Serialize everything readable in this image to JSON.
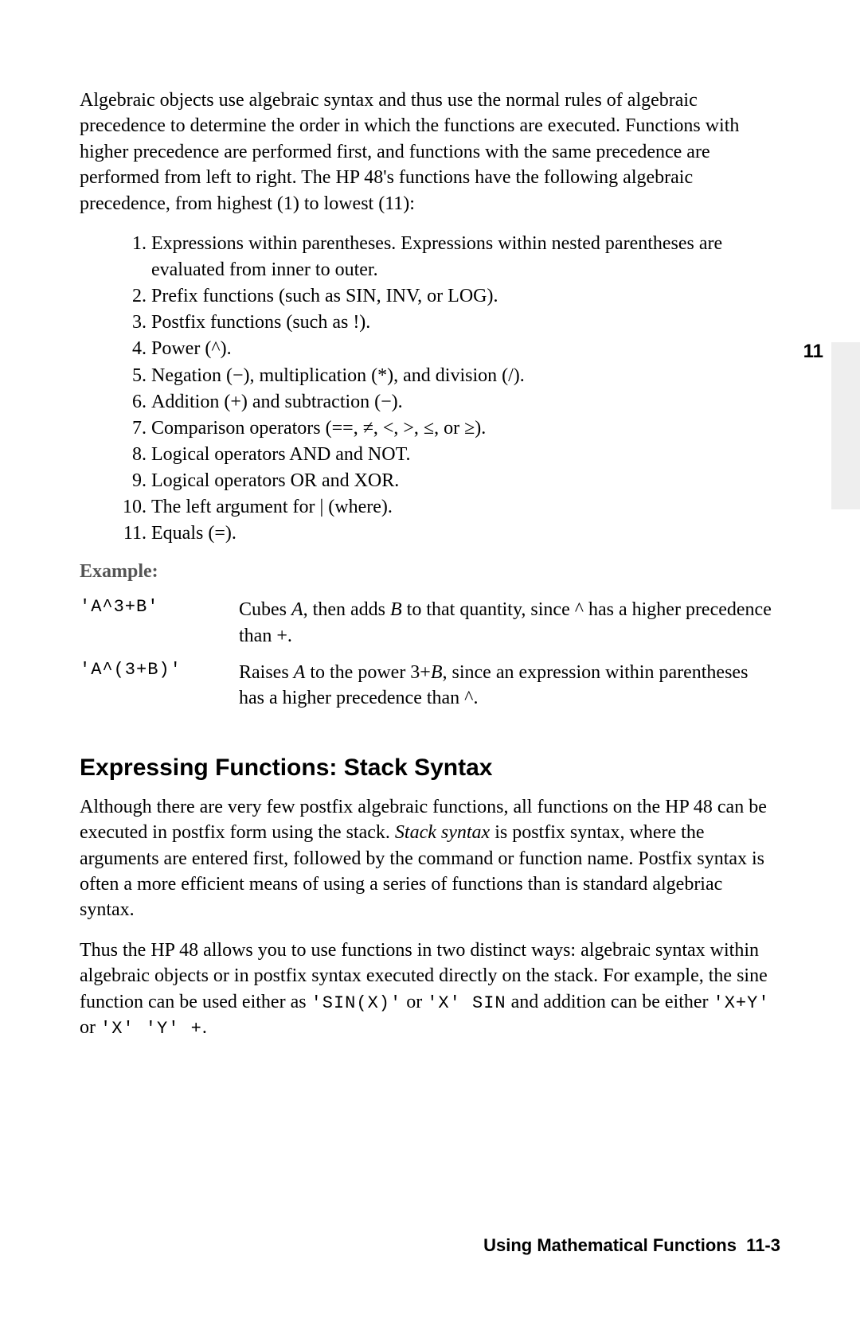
{
  "intro": "Algebraic objects use algebraic syntax and thus use the normal rules of algebraic precedence to determine the order in which the functions are executed. Functions with higher precedence are performed first, and functions with the same precedence are performed from left to right. The HP 48's functions have the following algebraic precedence, from highest (1) to lowest (11):",
  "items": [
    {
      "n": "1.",
      "t": "Expressions within parentheses. Expressions within nested parentheses are evaluated from inner to outer."
    },
    {
      "n": "2.",
      "t": "Prefix functions (such as SIN, INV, or LOG)."
    },
    {
      "n": "3.",
      "t": "Postfix functions (such as !)."
    },
    {
      "n": "4.",
      "t": "Power (^)."
    },
    {
      "n": "5.",
      "t": "Negation (−), multiplication (*), and division (/)."
    },
    {
      "n": "6.",
      "t": "Addition (+) and subtraction (−)."
    },
    {
      "n": "7.",
      "t": "Comparison operators (==, ≠, <, >, ≤, or ≥)."
    },
    {
      "n": "8.",
      "t": "Logical operators AND and NOT."
    },
    {
      "n": "9.",
      "t": "Logical operators OR and XOR."
    },
    {
      "n": "10.",
      "t": "The left argument for | (where)."
    },
    {
      "n": "11.",
      "t": "Equals (=)."
    }
  ],
  "example_label": "Example:",
  "examples": [
    {
      "code": "'A^3+B'",
      "desc_pre": "Cubes ",
      "desc_A": "A",
      "desc_mid1": ", then adds ",
      "desc_B": "B",
      "desc_post": " to that quantity, since ^ has a higher precedence than +."
    },
    {
      "code": "'A^(3+B)'",
      "desc_pre": "Raises ",
      "desc_A": "A",
      "desc_mid1": " to the power 3+",
      "desc_B": "B",
      "desc_post": ", since an expression within parentheses has a higher precedence than ^."
    }
  ],
  "h2": "Expressing Functions: Stack Syntax",
  "p2_pre": "Although there are very few postfix algebraic functions, all functions on the HP 48 can be executed in postfix form using the stack. ",
  "p2_ital": "Stack syntax",
  "p2_post": " is postfix syntax, where the arguments are entered first, followed by the command or function name. Postfix syntax is often a more efficient means of using a series of functions than is standard algebriac syntax.",
  "p3_a": "Thus the HP 48 allows you to use functions in two distinct ways: algebraic syntax within algebraic objects or in postfix syntax executed directly on the stack. For example, the sine function can be used either as ",
  "p3_code1": "'SIN(X)'",
  "p3_b": " or ",
  "p3_code2": "'X' SIN",
  "p3_c": " and addition can be either ",
  "p3_code3": "'X+Y'",
  "p3_d": " or ",
  "p3_code4": "'X' 'Y' +",
  "p3_e": ".",
  "chapter_num": "11",
  "footer_text": "Using Mathematical Functions",
  "footer_page": "11-3"
}
